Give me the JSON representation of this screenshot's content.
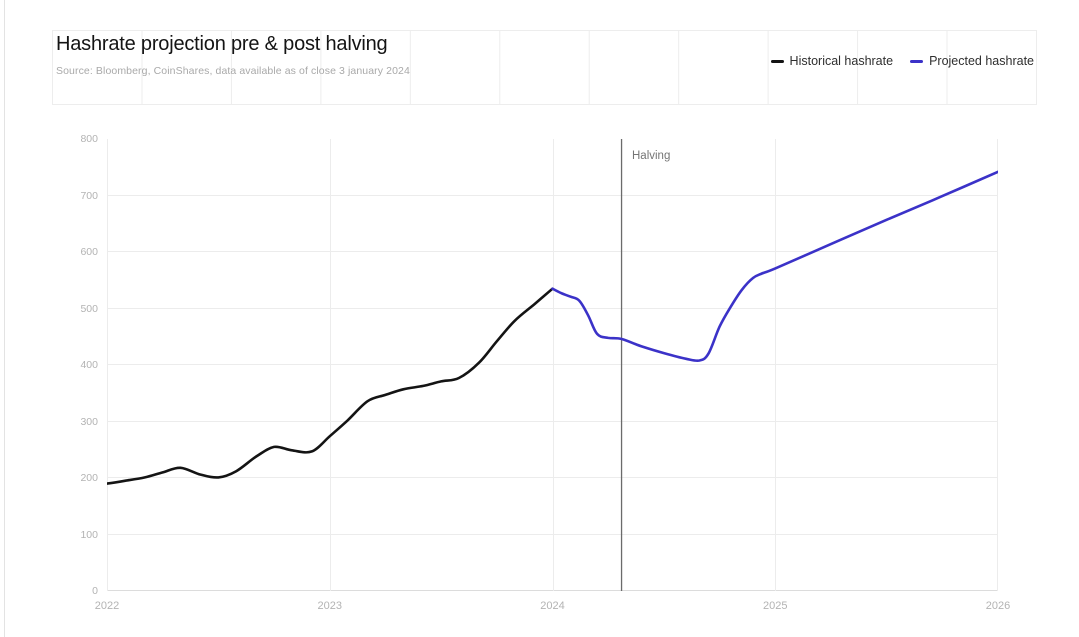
{
  "header": {
    "title": "Hashrate projection pre & post halving",
    "source": "Source: Bloomberg, CoinShares, data available as of close 3 january 2024"
  },
  "legend": {
    "items": [
      {
        "label": "Historical hashrate",
        "color": "#141414"
      },
      {
        "label": "Projected hashrate",
        "color": "#3b32c8"
      }
    ]
  },
  "chart_data": {
    "type": "line",
    "title": "Hashrate projection pre & post halving",
    "xlabel": "",
    "ylabel": "",
    "xlim": [
      2022,
      2026
    ],
    "ylim": [
      0,
      800
    ],
    "x_ticks": [
      2022,
      2023,
      2024,
      2025,
      2026
    ],
    "y_ticks": [
      0,
      100,
      200,
      300,
      400,
      500,
      600,
      700,
      800
    ],
    "grid": true,
    "legend_position": "top-right",
    "annotations": [
      {
        "type": "vline",
        "x": 2024.31,
        "label": "Halving",
        "color": "#6b6b6b"
      }
    ],
    "series": [
      {
        "name": "Historical hashrate",
        "color": "#141414",
        "points": [
          [
            2022.0,
            190
          ],
          [
            2022.08,
            195
          ],
          [
            2022.17,
            201
          ],
          [
            2022.25,
            210
          ],
          [
            2022.33,
            218
          ],
          [
            2022.42,
            206
          ],
          [
            2022.5,
            201
          ],
          [
            2022.58,
            212
          ],
          [
            2022.67,
            238
          ],
          [
            2022.75,
            255
          ],
          [
            2022.83,
            249
          ],
          [
            2022.92,
            247
          ],
          [
            2023.0,
            274
          ],
          [
            2023.08,
            302
          ],
          [
            2023.17,
            336
          ],
          [
            2023.25,
            347
          ],
          [
            2023.33,
            357
          ],
          [
            2023.42,
            363
          ],
          [
            2023.5,
            371
          ],
          [
            2023.58,
            377
          ],
          [
            2023.67,
            404
          ],
          [
            2023.75,
            442
          ],
          [
            2023.83,
            478
          ],
          [
            2023.92,
            508
          ],
          [
            2024.0,
            535
          ]
        ]
      },
      {
        "name": "Projected hashrate",
        "color": "#3b32c8",
        "points": [
          [
            2024.0,
            535
          ],
          [
            2024.04,
            527
          ],
          [
            2024.08,
            521
          ],
          [
            2024.12,
            514
          ],
          [
            2024.16,
            488
          ],
          [
            2024.2,
            455
          ],
          [
            2024.25,
            448
          ],
          [
            2024.31,
            446
          ],
          [
            2024.4,
            433
          ],
          [
            2024.5,
            421
          ],
          [
            2024.6,
            411
          ],
          [
            2024.66,
            408
          ],
          [
            2024.7,
            420
          ],
          [
            2024.75,
            468
          ],
          [
            2024.8,
            503
          ],
          [
            2024.85,
            533
          ],
          [
            2024.9,
            554
          ],
          [
            2024.94,
            562
          ],
          [
            2025.0,
            571
          ],
          [
            2025.25,
            614
          ],
          [
            2025.5,
            657
          ],
          [
            2025.75,
            699
          ],
          [
            2026.0,
            742
          ]
        ]
      }
    ]
  },
  "colors": {
    "background": "#ffffff",
    "gridline": "#ececec",
    "axis_line": "#dcdcdc",
    "tick_label": "#b3b3b3",
    "halving_line": "#6b6b6b"
  }
}
